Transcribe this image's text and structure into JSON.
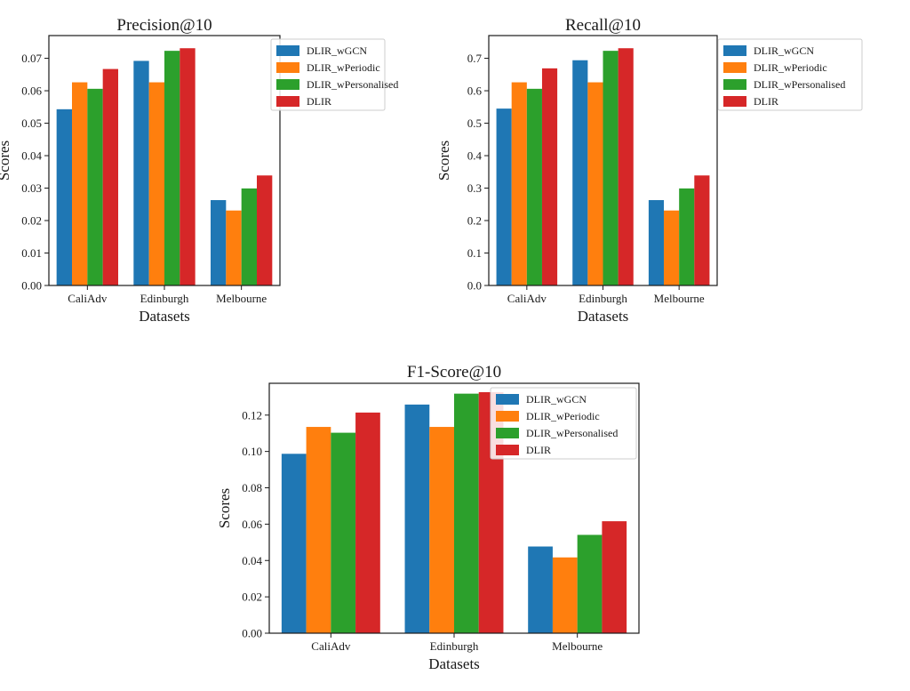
{
  "chart_data": [
    {
      "type": "bar",
      "title": "Precision@10",
      "xlabel": "Datasets",
      "ylabel": "Scores",
      "categories": [
        "CaliAdv",
        "Edinburgh",
        "Melbourne"
      ],
      "ylim": [
        0,
        0.077
      ],
      "yticks": [
        "0.00",
        "0.01",
        "0.02",
        "0.03",
        "0.04",
        "0.05",
        "0.06",
        "0.07"
      ],
      "ytick_values": [
        0,
        0.01,
        0.02,
        0.03,
        0.04,
        0.05,
        0.06,
        0.07
      ],
      "legend_position": "top-right",
      "series": [
        {
          "name": "DLIR_wGCN",
          "color": "#1f77b4",
          "values": [
            0.0543,
            0.0692,
            0.0263
          ]
        },
        {
          "name": "DLIR_wPeriodic",
          "color": "#ff7f0e",
          "values": [
            0.0626,
            0.0626,
            0.0231
          ]
        },
        {
          "name": "DLIR_wPersonalised",
          "color": "#2ca02c",
          "values": [
            0.0606,
            0.0723,
            0.0299
          ]
        },
        {
          "name": "DLIR",
          "color": "#d62728",
          "values": [
            0.0667,
            0.0731,
            0.0339
          ]
        }
      ]
    },
    {
      "type": "bar",
      "title": "Recall@10",
      "xlabel": "Datasets",
      "ylabel": "Scores",
      "categories": [
        "CaliAdv",
        "Edinburgh",
        "Melbourne"
      ],
      "ylim": [
        0,
        0.77
      ],
      "yticks": [
        "0.0",
        "0.1",
        "0.2",
        "0.3",
        "0.4",
        "0.5",
        "0.6",
        "0.7"
      ],
      "ytick_values": [
        0,
        0.1,
        0.2,
        0.3,
        0.4,
        0.5,
        0.6,
        0.7
      ],
      "legend_position": "top-right",
      "series": [
        {
          "name": "DLIR_wGCN",
          "color": "#1f77b4",
          "values": [
            0.545,
            0.694,
            0.263
          ]
        },
        {
          "name": "DLIR_wPeriodic",
          "color": "#ff7f0e",
          "values": [
            0.626,
            0.626,
            0.231
          ]
        },
        {
          "name": "DLIR_wPersonalised",
          "color": "#2ca02c",
          "values": [
            0.606,
            0.723,
            0.299
          ]
        },
        {
          "name": "DLIR",
          "color": "#d62728",
          "values": [
            0.669,
            0.731,
            0.339
          ]
        }
      ]
    },
    {
      "type": "bar",
      "title": "F1-Score@10",
      "xlabel": "Datasets",
      "ylabel": "Scores",
      "categories": [
        "CaliAdv",
        "Edinburgh",
        "Melbourne"
      ],
      "ylim": [
        0,
        0.1375
      ],
      "yticks": [
        "0.00",
        "0.02",
        "0.04",
        "0.06",
        "0.08",
        "0.10",
        "0.12"
      ],
      "ytick_values": [
        0,
        0.02,
        0.04,
        0.06,
        0.08,
        0.1,
        0.12
      ],
      "legend_position": "top-right",
      "series": [
        {
          "name": "DLIR_wGCN",
          "color": "#1f77b4",
          "values": [
            0.0987,
            0.1258,
            0.0477
          ]
        },
        {
          "name": "DLIR_wPeriodic",
          "color": "#ff7f0e",
          "values": [
            0.1135,
            0.1135,
            0.0417
          ]
        },
        {
          "name": "DLIR_wPersonalised",
          "color": "#2ca02c",
          "values": [
            0.1103,
            0.1318,
            0.0541
          ]
        },
        {
          "name": "DLIR",
          "color": "#d62728",
          "values": [
            0.1214,
            0.1326,
            0.0616
          ]
        }
      ]
    }
  ]
}
